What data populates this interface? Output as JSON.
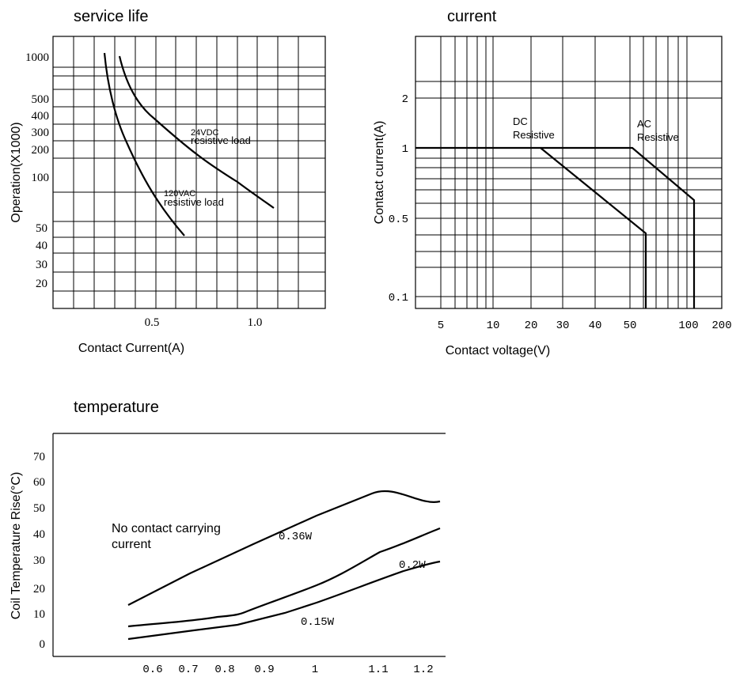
{
  "chart_data": [
    {
      "type": "line",
      "title": "service life",
      "xlabel": "Contact Current(A)",
      "ylabel": "Operation(X1000)",
      "xticks": [
        "0.5",
        "1.0"
      ],
      "yticks": [
        "1000",
        "500",
        "400",
        "300",
        "200",
        "100",
        "50",
        "40",
        "30",
        "20"
      ],
      "yscale": "log",
      "ylim": [
        13,
        1300
      ],
      "xlim": [
        0.0,
        1.3
      ],
      "grid": true,
      "series": [
        {
          "name": "24VDC resistive load",
          "x": [
            0.36,
            0.4,
            0.5,
            0.7,
            0.9,
            1.08
          ],
          "y": [
            1000,
            700,
            380,
            180,
            110,
            65
          ]
        },
        {
          "name": "120VAC resistive load",
          "x": [
            0.29,
            0.33,
            0.4,
            0.5,
            0.6,
            0.66
          ],
          "y": [
            1000,
            400,
            190,
            95,
            60,
            46
          ]
        }
      ],
      "annotations": [
        {
          "text": "24VDC",
          "sub": "resistive load"
        },
        {
          "text": "120VAC",
          "sub": "resistive load"
        }
      ]
    },
    {
      "type": "line",
      "title": "current",
      "xlabel": "Contact voltage(V)",
      "ylabel": "Contact current(A)",
      "xscale": "log",
      "yscale": "log",
      "xticks": [
        "5",
        "10",
        "20",
        "30",
        "40",
        "50",
        "100",
        "200"
      ],
      "yticks": [
        "2",
        "1",
        "0.5",
        "0.1"
      ],
      "grid": true,
      "series": [
        {
          "name": "DC Resistive",
          "x": [
            3,
            23,
            60,
            60
          ],
          "y": [
            1,
            1,
            0.4,
            0.08
          ]
        },
        {
          "name": "AC Resistive",
          "x": [
            3,
            50,
            115,
            115
          ],
          "y": [
            1,
            1,
            0.6,
            0.08
          ]
        }
      ],
      "annotations": [
        {
          "text": "DC",
          "sub": "Resistive"
        },
        {
          "text": "AC",
          "sub": "Resistive"
        }
      ]
    },
    {
      "type": "line",
      "title": "temperature",
      "xlabel": "",
      "ylabel": "Coil Temperature Rise(°C)",
      "xticks": [
        "0.6",
        "0.7",
        "0.8",
        "0.9",
        "1",
        "1.1",
        "1.2"
      ],
      "yticks": [
        "70",
        "60",
        "50",
        "40",
        "30",
        "20",
        "10",
        "0"
      ],
      "xlim": [
        0.5,
        1.3
      ],
      "ylim": [
        0,
        75
      ],
      "grid": false,
      "series": [
        {
          "name": "0.36W",
          "x": [
            0.6,
            0.8,
            1.0,
            1.1,
            1.23
          ],
          "y": [
            14,
            25,
            36,
            44,
            52
          ]
        },
        {
          "name": "0.2W",
          "x": [
            0.6,
            0.78,
            0.84,
            1.0,
            1.13,
            1.23
          ],
          "y": [
            6,
            9,
            11,
            20,
            30,
            37
          ]
        },
        {
          "name": "0.15W",
          "x": [
            0.6,
            0.8,
            0.95,
            1.1,
            1.18,
            1.23
          ],
          "y": [
            2,
            6,
            11,
            20,
            24,
            26
          ]
        }
      ],
      "annotations": [
        {
          "text": "No contact carrying",
          "sub": "current"
        }
      ]
    }
  ]
}
